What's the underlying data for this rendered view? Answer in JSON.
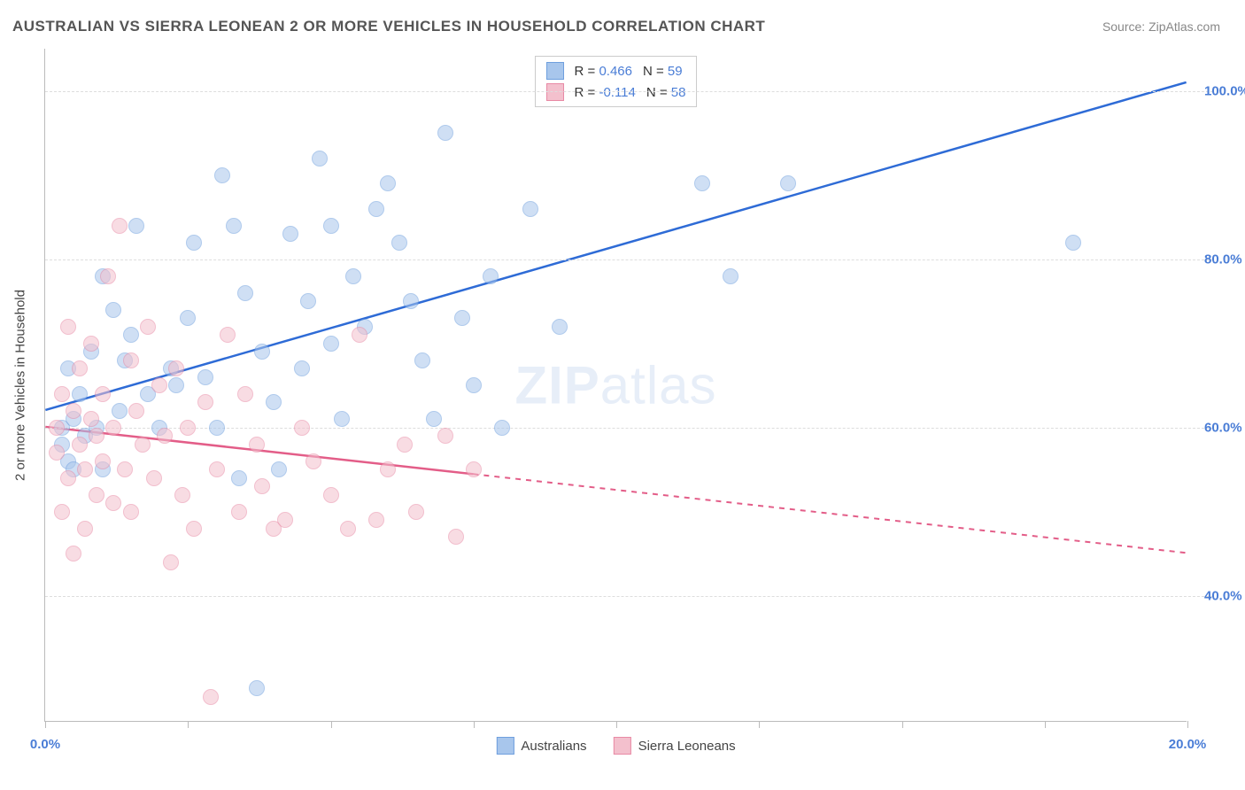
{
  "title": "AUSTRALIAN VS SIERRA LEONEAN 2 OR MORE VEHICLES IN HOUSEHOLD CORRELATION CHART",
  "source": "Source: ZipAtlas.com",
  "watermark_bold": "ZIP",
  "watermark_light": "atlas",
  "y_axis_label": "2 or more Vehicles in Household",
  "plot": {
    "x_min": 0.0,
    "x_max": 20.0,
    "y_min": 25.0,
    "y_max": 105.0,
    "y_gridlines": [
      40.0,
      60.0,
      80.0,
      100.0
    ],
    "y_tick_labels": [
      "40.0%",
      "60.0%",
      "80.0%",
      "100.0%"
    ],
    "x_ticks": [
      0.0,
      2.5,
      5.0,
      7.5,
      10.0,
      12.5,
      15.0,
      17.5,
      20.0
    ],
    "x_tick_labels": {
      "0": "0.0%",
      "20": "20.0%"
    },
    "background": "#ffffff",
    "grid_color": "#dddddd",
    "axis_color": "#bbbbbb",
    "tick_font_color": "#4a7dd6",
    "tick_font_size": 15
  },
  "series": [
    {
      "name": "Australians",
      "color_fill": "#a8c6ec",
      "color_stroke": "#6f9fde",
      "legend_r_label": "R = ",
      "legend_r_value": "0.466",
      "legend_n_label": "N = ",
      "legend_n_value": "59",
      "trend": {
        "x1": 0.0,
        "y1": 62.0,
        "x2": 20.0,
        "y2": 101.0,
        "solid_to_x": 20.0,
        "color": "#2e6bd6",
        "width": 2.5
      },
      "points": [
        [
          0.3,
          60
        ],
        [
          0.3,
          58
        ],
        [
          0.5,
          61
        ],
        [
          0.4,
          56
        ],
        [
          0.5,
          55
        ],
        [
          0.4,
          67
        ],
        [
          0.6,
          64
        ],
        [
          0.7,
          59
        ],
        [
          0.8,
          69
        ],
        [
          0.9,
          60
        ],
        [
          1.0,
          55
        ],
        [
          1.0,
          78
        ],
        [
          1.2,
          74
        ],
        [
          1.3,
          62
        ],
        [
          1.4,
          68
        ],
        [
          1.5,
          71
        ],
        [
          1.6,
          84
        ],
        [
          1.8,
          64
        ],
        [
          2.0,
          60
        ],
        [
          2.2,
          67
        ],
        [
          2.3,
          65
        ],
        [
          2.5,
          73
        ],
        [
          2.6,
          82
        ],
        [
          2.8,
          66
        ],
        [
          3.0,
          60
        ],
        [
          3.1,
          90
        ],
        [
          3.3,
          84
        ],
        [
          3.4,
          54
        ],
        [
          3.5,
          76
        ],
        [
          3.7,
          29
        ],
        [
          3.8,
          69
        ],
        [
          4.0,
          63
        ],
        [
          4.1,
          55
        ],
        [
          4.3,
          83
        ],
        [
          4.5,
          67
        ],
        [
          4.6,
          75
        ],
        [
          4.8,
          92
        ],
        [
          5.0,
          84
        ],
        [
          5.0,
          70
        ],
        [
          5.2,
          61
        ],
        [
          5.4,
          78
        ],
        [
          5.6,
          72
        ],
        [
          5.8,
          86
        ],
        [
          6.0,
          89
        ],
        [
          6.2,
          82
        ],
        [
          6.4,
          75
        ],
        [
          6.6,
          68
        ],
        [
          6.8,
          61
        ],
        [
          7.0,
          95
        ],
        [
          7.3,
          73
        ],
        [
          7.5,
          65
        ],
        [
          7.8,
          78
        ],
        [
          8.0,
          60
        ],
        [
          8.5,
          86
        ],
        [
          9.0,
          72
        ],
        [
          11.5,
          89
        ],
        [
          12.0,
          78
        ],
        [
          18.0,
          82
        ],
        [
          13.0,
          89
        ]
      ]
    },
    {
      "name": "Sierra Leoneans",
      "color_fill": "#f3c0cd",
      "color_stroke": "#e88aa5",
      "legend_r_label": "R = ",
      "legend_r_value": "-0.114",
      "legend_n_label": "N = ",
      "legend_n_value": "58",
      "trend": {
        "x1": 0.0,
        "y1": 60.0,
        "x2": 20.0,
        "y2": 45.0,
        "solid_to_x": 7.5,
        "color": "#e35d88",
        "width": 2.5
      },
      "points": [
        [
          0.2,
          60
        ],
        [
          0.2,
          57
        ],
        [
          0.3,
          64
        ],
        [
          0.3,
          50
        ],
        [
          0.4,
          54
        ],
        [
          0.4,
          72
        ],
        [
          0.5,
          45
        ],
        [
          0.5,
          62
        ],
        [
          0.6,
          58
        ],
        [
          0.6,
          67
        ],
        [
          0.7,
          55
        ],
        [
          0.7,
          48
        ],
        [
          0.8,
          61
        ],
        [
          0.8,
          70
        ],
        [
          0.9,
          52
        ],
        [
          0.9,
          59
        ],
        [
          1.0,
          64
        ],
        [
          1.0,
          56
        ],
        [
          1.1,
          78
        ],
        [
          1.2,
          51
        ],
        [
          1.2,
          60
        ],
        [
          1.3,
          84
        ],
        [
          1.4,
          55
        ],
        [
          1.5,
          68
        ],
        [
          1.5,
          50
        ],
        [
          1.6,
          62
        ],
        [
          1.7,
          58
        ],
        [
          1.8,
          72
        ],
        [
          1.9,
          54
        ],
        [
          2.0,
          65
        ],
        [
          2.1,
          59
        ],
        [
          2.2,
          44
        ],
        [
          2.3,
          67
        ],
        [
          2.4,
          52
        ],
        [
          2.5,
          60
        ],
        [
          2.6,
          48
        ],
        [
          2.8,
          63
        ],
        [
          2.9,
          28
        ],
        [
          3.0,
          55
        ],
        [
          3.2,
          71
        ],
        [
          3.4,
          50
        ],
        [
          3.5,
          64
        ],
        [
          3.7,
          58
        ],
        [
          3.8,
          53
        ],
        [
          4.0,
          48
        ],
        [
          4.2,
          49
        ],
        [
          4.5,
          60
        ],
        [
          4.7,
          56
        ],
        [
          5.0,
          52
        ],
        [
          5.3,
          48
        ],
        [
          5.5,
          71
        ],
        [
          5.8,
          49
        ],
        [
          6.0,
          55
        ],
        [
          6.3,
          58
        ],
        [
          6.5,
          50
        ],
        [
          7.0,
          59
        ],
        [
          7.2,
          47
        ],
        [
          7.5,
          55
        ]
      ]
    }
  ],
  "legend_bottom": [
    {
      "label": "Australians",
      "fill": "#a8c6ec",
      "stroke": "#6f9fde"
    },
    {
      "label": "Sierra Leoneans",
      "fill": "#f3c0cd",
      "stroke": "#e88aa5"
    }
  ]
}
